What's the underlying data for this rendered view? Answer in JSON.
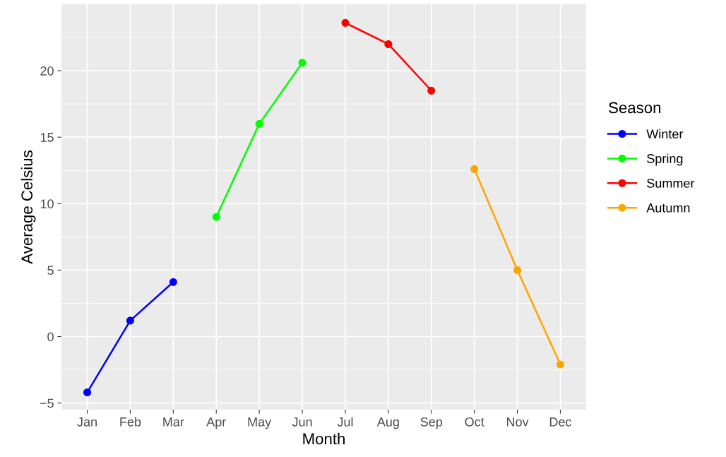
{
  "chart_data": {
    "type": "line",
    "xlabel": "Month",
    "ylabel": "Average Celsius",
    "legend_title": "Season",
    "categories": [
      "Jan",
      "Feb",
      "Mar",
      "Apr",
      "May",
      "Jun",
      "Jul",
      "Aug",
      "Sep",
      "Oct",
      "Nov",
      "Dec"
    ],
    "series": [
      {
        "name": "Winter",
        "color": "#0000ff",
        "values": [
          -4.2,
          1.2,
          4.1,
          null,
          null,
          null,
          null,
          null,
          null,
          null,
          null,
          null
        ]
      },
      {
        "name": "Spring",
        "color": "#00ff00",
        "values": [
          null,
          null,
          null,
          9.0,
          16.0,
          20.6,
          null,
          null,
          null,
          null,
          null,
          null
        ]
      },
      {
        "name": "Summer",
        "color": "#ff0000",
        "values": [
          null,
          null,
          null,
          null,
          null,
          null,
          23.6,
          22.0,
          18.5,
          null,
          null,
          null
        ]
      },
      {
        "name": "Autumn",
        "color": "#ffa500",
        "values": [
          null,
          null,
          null,
          null,
          null,
          null,
          null,
          null,
          null,
          12.6,
          5.0,
          -2.1
        ]
      }
    ],
    "ylim": [
      -5.5,
      25
    ],
    "yticks": [
      -5,
      0,
      5,
      10,
      15,
      20
    ],
    "grid": true,
    "legend": "right",
    "marker": "circle",
    "line_style": "solid"
  }
}
